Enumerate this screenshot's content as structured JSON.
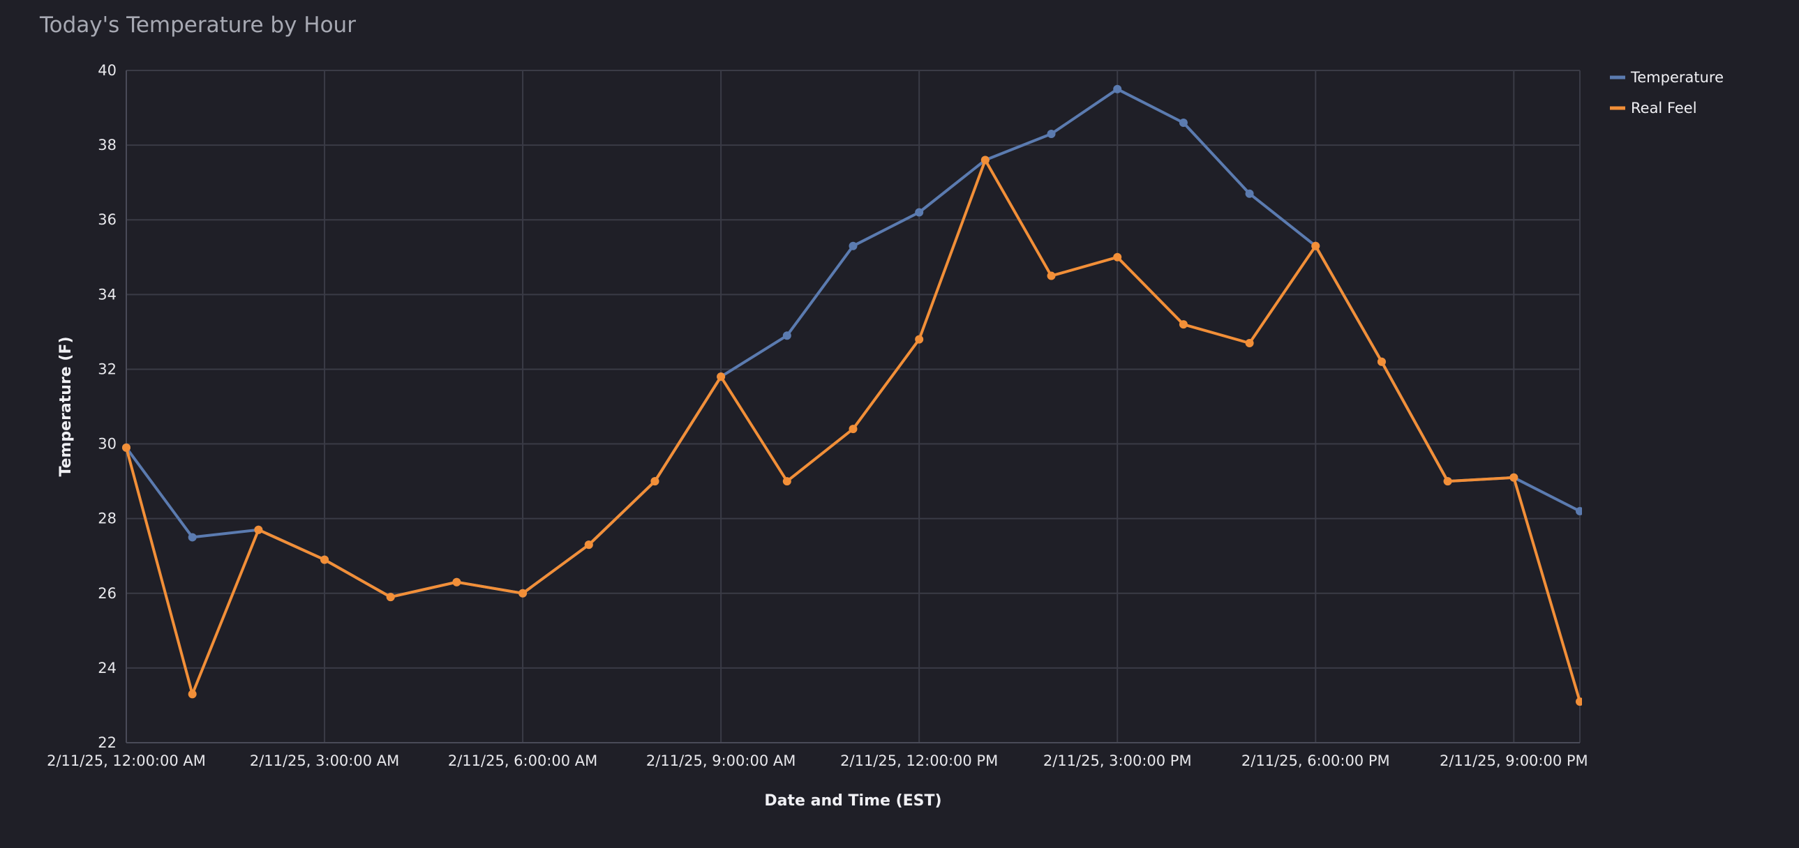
{
  "chart_data": {
    "type": "line",
    "title": "Today's Temperature by Hour",
    "xlabel": "Date and Time (EST)",
    "ylabel": "Temperature (F)",
    "ylim": [
      22,
      40
    ],
    "yticks": [
      22,
      24,
      26,
      28,
      30,
      32,
      34,
      36,
      38,
      40
    ],
    "xlim": [
      0,
      22
    ],
    "x": [
      0,
      1,
      2,
      3,
      4,
      5,
      6,
      7,
      8,
      9,
      10,
      11,
      12,
      13,
      14,
      15,
      16,
      17,
      18,
      19,
      20,
      21,
      22
    ],
    "xticks": [
      0,
      3,
      6,
      9,
      12,
      15,
      18,
      21
    ],
    "xtick_labels": [
      "2/11/25, 12:00:00 AM",
      "2/11/25, 3:00:00 AM",
      "2/11/25, 6:00:00 AM",
      "2/11/25, 9:00:00 AM",
      "2/11/25, 12:00:00 PM",
      "2/11/25, 3:00:00 PM",
      "2/11/25, 6:00:00 PM",
      "2/11/25, 9:00:00 PM"
    ],
    "grid": true,
    "legend_position": "top-right",
    "series": [
      {
        "name": "Temperature",
        "color": "#5b7bb0",
        "values": [
          29.9,
          27.5,
          27.7,
          26.9,
          25.9,
          26.3,
          26.0,
          27.3,
          29.0,
          31.8,
          32.9,
          35.3,
          36.2,
          37.6,
          38.3,
          39.5,
          38.6,
          36.7,
          35.3,
          32.2,
          29.0,
          29.1,
          28.2
        ]
      },
      {
        "name": "Real Feel",
        "color": "#f28f38",
        "values": [
          29.9,
          23.3,
          27.7,
          26.9,
          25.9,
          26.3,
          26.0,
          27.3,
          29.0,
          31.8,
          29.0,
          30.4,
          32.8,
          37.6,
          34.5,
          35.0,
          33.2,
          32.7,
          35.3,
          32.2,
          29.0,
          29.1,
          23.1
        ]
      }
    ]
  }
}
